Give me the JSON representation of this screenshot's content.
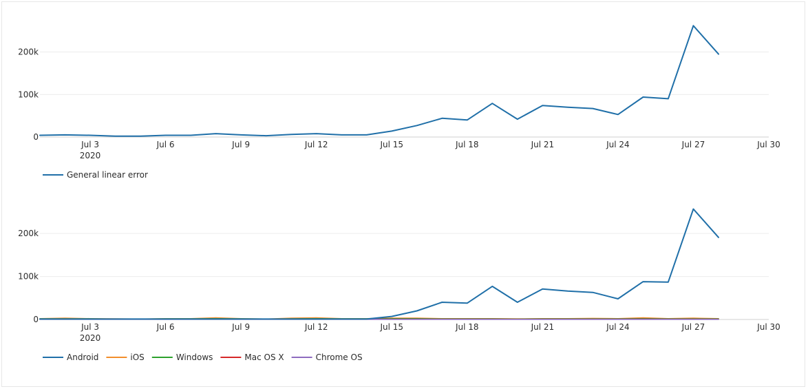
{
  "chart_data": [
    {
      "type": "line",
      "x": [
        "2020-07-01",
        "2020-07-02",
        "2020-07-03",
        "2020-07-04",
        "2020-07-05",
        "2020-07-06",
        "2020-07-07",
        "2020-07-08",
        "2020-07-09",
        "2020-07-10",
        "2020-07-11",
        "2020-07-12",
        "2020-07-13",
        "2020-07-14",
        "2020-07-15",
        "2020-07-16",
        "2020-07-17",
        "2020-07-18",
        "2020-07-19",
        "2020-07-20",
        "2020-07-21",
        "2020-07-22",
        "2020-07-23",
        "2020-07-24",
        "2020-07-25",
        "2020-07-26",
        "2020-07-27",
        "2020-07-28"
      ],
      "xlim": [
        "2020-07-01",
        "2020-07-30"
      ],
      "x_ticks": [
        "Jul 3",
        "Jul 6",
        "Jul 9",
        "Jul 12",
        "Jul 15",
        "Jul 18",
        "Jul 21",
        "Jul 24",
        "Jul 27",
        "Jul 30"
      ],
      "x_tick_year": "2020",
      "y_ticks": [
        "0",
        "100k",
        "200k"
      ],
      "ylim": [
        0,
        290000
      ],
      "grid": true,
      "legend_position": "bottom-left",
      "series": [
        {
          "name": "General linear error",
          "color": "#1f6fa8",
          "values": [
            4000,
            5000,
            4000,
            2000,
            2000,
            4000,
            4000,
            8000,
            5000,
            3000,
            6000,
            8000,
            5000,
            5000,
            14000,
            27000,
            44000,
            40000,
            79000,
            42000,
            74000,
            70000,
            67000,
            53000,
            94000,
            90000,
            262000,
            195000
          ]
        }
      ]
    },
    {
      "type": "line",
      "x": [
        "2020-07-01",
        "2020-07-02",
        "2020-07-03",
        "2020-07-04",
        "2020-07-05",
        "2020-07-06",
        "2020-07-07",
        "2020-07-08",
        "2020-07-09",
        "2020-07-10",
        "2020-07-11",
        "2020-07-12",
        "2020-07-13",
        "2020-07-14",
        "2020-07-15",
        "2020-07-16",
        "2020-07-17",
        "2020-07-18",
        "2020-07-19",
        "2020-07-20",
        "2020-07-21",
        "2020-07-22",
        "2020-07-23",
        "2020-07-24",
        "2020-07-25",
        "2020-07-26",
        "2020-07-27",
        "2020-07-28"
      ],
      "xlim": [
        "2020-07-01",
        "2020-07-30"
      ],
      "x_ticks": [
        "Jul 3",
        "Jul 6",
        "Jul 9",
        "Jul 12",
        "Jul 15",
        "Jul 18",
        "Jul 21",
        "Jul 24",
        "Jul 27",
        "Jul 30"
      ],
      "x_tick_year": "2020",
      "y_ticks": [
        "0",
        "100k",
        "200k"
      ],
      "ylim": [
        0,
        290000
      ],
      "grid": true,
      "legend_position": "bottom-left",
      "series": [
        {
          "name": "Android",
          "color": "#1f6fa8",
          "values": [
            1000,
            1000,
            1000,
            1000,
            1000,
            1000,
            1000,
            1000,
            1000,
            1000,
            1000,
            1000,
            1000,
            1000,
            7000,
            20000,
            40000,
            38000,
            77000,
            40000,
            71000,
            66000,
            63000,
            48000,
            88000,
            87000,
            257000,
            191000
          ]
        },
        {
          "name": "iOS",
          "color": "#f28e2b",
          "values": [
            2000,
            3000,
            2000,
            1500,
            1000,
            2000,
            2000,
            4000,
            2000,
            1000,
            3000,
            4000,
            2000,
            2000,
            3000,
            3000,
            2000,
            2000,
            2000,
            1500,
            2000,
            2000,
            2500,
            2000,
            4000,
            2000,
            3000,
            2000
          ]
        },
        {
          "name": "Windows",
          "color": "#2ca02c",
          "values": [
            1500,
            1500,
            1500,
            1000,
            1000,
            1500,
            1500,
            2000,
            1500,
            1000,
            1500,
            2000,
            1500,
            1500,
            2000,
            2000,
            1500,
            1500,
            1500,
            1000,
            1500,
            1500,
            1500,
            1500,
            2000,
            1500,
            1500,
            1500
          ]
        },
        {
          "name": "Mac OS X",
          "color": "#d62728",
          "values": [
            500,
            800,
            700,
            500,
            500,
            600,
            600,
            900,
            700,
            500,
            700,
            900,
            600,
            600,
            700,
            700,
            600,
            600,
            600,
            500,
            600,
            600,
            700,
            600,
            900,
            700,
            800,
            700
          ]
        },
        {
          "name": "Chrome OS",
          "color": "#8e6bbf",
          "values": [
            300,
            400,
            300,
            300,
            300,
            300,
            300,
            400,
            300,
            300,
            300,
            400,
            300,
            300,
            400,
            400,
            300,
            300,
            300,
            300,
            300,
            300,
            300,
            300,
            400,
            300,
            400,
            300
          ]
        }
      ]
    }
  ]
}
